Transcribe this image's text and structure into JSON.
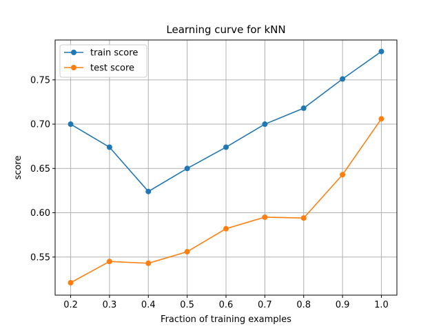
{
  "chart_data": {
    "type": "line",
    "title": "Learning curve for kNN",
    "xlabel": "Fraction of training examples",
    "ylabel": "score",
    "x": [
      0.2,
      0.3,
      0.4,
      0.5,
      0.6,
      0.7,
      0.8,
      0.9,
      1.0
    ],
    "xticks": [
      "0.2",
      "0.3",
      "0.4",
      "0.5",
      "0.6",
      "0.7",
      "0.8",
      "0.9",
      "1.0"
    ],
    "yticks": [
      0.55,
      0.6,
      0.65,
      0.7,
      0.75
    ],
    "ytick_labels": [
      "0.55",
      "0.60",
      "0.65",
      "0.70",
      "0.75"
    ],
    "xlim": [
      0.16,
      1.04
    ],
    "ylim": [
      0.507,
      0.795
    ],
    "grid": true,
    "legend_position": "top-left",
    "series": [
      {
        "name": "train score",
        "color": "#1f77b4",
        "marker": "circle",
        "values": [
          0.7,
          0.674,
          0.624,
          0.65,
          0.674,
          0.7,
          0.718,
          0.751,
          0.782
        ]
      },
      {
        "name": "test score",
        "color": "#ff7f0e",
        "marker": "circle",
        "values": [
          0.521,
          0.545,
          0.543,
          0.556,
          0.582,
          0.595,
          0.594,
          0.643,
          0.706
        ]
      }
    ]
  }
}
